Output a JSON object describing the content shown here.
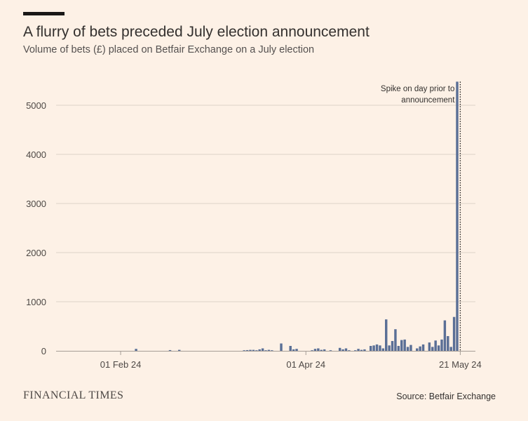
{
  "header": {
    "title": "A flurry of bets preceded July election announcement",
    "subtitle": "Volume of bets (£) placed on Betfair Exchange on a July election"
  },
  "footer": {
    "brand": "FINANCIAL TIMES",
    "source": "Source: Betfair Exchange"
  },
  "colors": {
    "bar": "#5a6f96",
    "grid": "#ddd2c8",
    "axis": "#a59d96",
    "text": "#4d4845",
    "annotation_line": "#1a1817"
  },
  "chart_data": {
    "type": "bar",
    "title": "A flurry of bets preceded July election announcement",
    "subtitle": "Volume of bets (£) placed on Betfair Exchange on a July election",
    "xlabel": "",
    "ylabel": "",
    "ylim": [
      0,
      5500
    ],
    "yticks": [
      0,
      1000,
      2000,
      3000,
      4000,
      5000
    ],
    "ytick_labels": [
      "0",
      "1000",
      "2000",
      "3000",
      "4000",
      "5000"
    ],
    "grid": true,
    "start_date": "2024-01-17",
    "xticks": [
      {
        "index": 15,
        "label": "01 Feb 24"
      },
      {
        "index": 75,
        "label": "01 Apr 24"
      },
      {
        "index": 125,
        "label": "21 May 24"
      }
    ],
    "series": [
      {
        "name": "Volume of bets (£)",
        "values": [
          0,
          0,
          0,
          0,
          0,
          0,
          0,
          0,
          0,
          0,
          0,
          0,
          0,
          0,
          0,
          0,
          0,
          0,
          0,
          0,
          40,
          0,
          0,
          0,
          0,
          0,
          0,
          0,
          0,
          0,
          0,
          15,
          0,
          0,
          20,
          0,
          0,
          0,
          0,
          0,
          0,
          0,
          0,
          0,
          0,
          0,
          0,
          0,
          0,
          0,
          0,
          0,
          0,
          0,
          0,
          10,
          15,
          20,
          20,
          10,
          30,
          50,
          10,
          20,
          10,
          0,
          0,
          150,
          0,
          0,
          100,
          30,
          40,
          0,
          0,
          0,
          0,
          10,
          40,
          50,
          20,
          30,
          0,
          10,
          0,
          0,
          60,
          30,
          50,
          10,
          0,
          10,
          40,
          20,
          30,
          0,
          100,
          110,
          130,
          110,
          50,
          640,
          110,
          200,
          440,
          100,
          220,
          230,
          80,
          120,
          0,
          50,
          90,
          130,
          0,
          170,
          80,
          210,
          110,
          230,
          620,
          300,
          80,
          690,
          5480
        ]
      }
    ],
    "annotations": [
      {
        "text_lines": [
          "Spike on day prior to",
          "announcement"
        ],
        "index": 125,
        "value": 5480
      }
    ]
  }
}
